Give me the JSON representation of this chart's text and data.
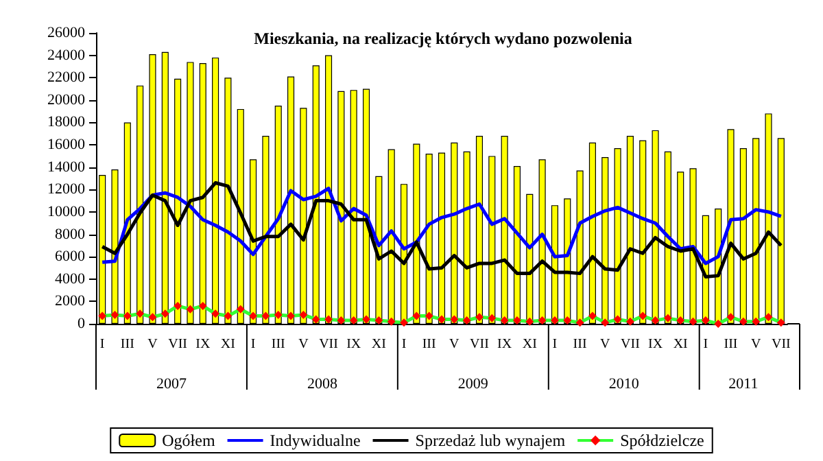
{
  "chart_data": {
    "type": "bar",
    "title": "Mieszkania, na realizację których wydano pozwolenia",
    "categories": [
      "I",
      null,
      "III",
      null,
      "V",
      null,
      "VII",
      null,
      "IX",
      null,
      "XI",
      null,
      "I",
      null,
      "III",
      null,
      "V",
      null,
      "VII",
      null,
      "IX",
      null,
      "XI",
      null,
      "I",
      null,
      "III",
      null,
      "V",
      null,
      "VII",
      null,
      "IX",
      null,
      "XI",
      null,
      "I",
      null,
      "III",
      null,
      "V",
      null,
      "VII",
      null,
      "IX",
      null,
      "XI",
      null,
      "I",
      null,
      "III",
      null,
      "V",
      null,
      "VII"
    ],
    "series": [
      {
        "name": "Ogółem",
        "color": "#ffff00",
        "values": [
          13300,
          13800,
          18000,
          21300,
          24100,
          24300,
          21900,
          23400,
          23300,
          23800,
          22000,
          19200,
          14700,
          16800,
          19500,
          22100,
          19300,
          23100,
          24000,
          20800,
          20900,
          21000,
          13200,
          15600,
          12500,
          16100,
          15200,
          15300,
          16200,
          15400,
          16800,
          15000,
          16800,
          14100,
          11600,
          14700,
          10600,
          11200,
          13700,
          16200,
          14900,
          15700,
          16800,
          16400,
          17300,
          15400,
          13600,
          13900,
          9700,
          10300,
          17400,
          15700,
          16600,
          18800,
          16600
        ]
      },
      {
        "name": "Indywidualne",
        "type": "line",
        "color": "#0000ff",
        "marker": "none",
        "values": [
          5500,
          5600,
          9300,
          10300,
          11500,
          11700,
          11300,
          10500,
          9300,
          8800,
          8200,
          7400,
          6200,
          7800,
          9400,
          11900,
          11100,
          11400,
          12100,
          9200,
          10300,
          9700,
          7000,
          8300,
          6700,
          7300,
          8900,
          9500,
          9800,
          10300,
          10700,
          8900,
          9400,
          8100,
          6800,
          8000,
          6000,
          6100,
          9000,
          9600,
          10100,
          10400,
          9900,
          9400,
          9000,
          7800,
          6700,
          6900,
          5400,
          6000,
          9300,
          9400,
          10200,
          10000,
          9600
        ]
      },
      {
        "name": "Sprzedaż lub wynajem",
        "type": "line",
        "color": "#000000",
        "marker": "none",
        "values": [
          6900,
          6300,
          8000,
          9900,
          11500,
          11000,
          8800,
          11000,
          11300,
          12600,
          12300,
          9900,
          7400,
          7800,
          7800,
          8900,
          7500,
          11000,
          11000,
          10700,
          9300,
          9300,
          5800,
          6500,
          5400,
          7300,
          4900,
          5000,
          6100,
          5000,
          5400,
          5400,
          5700,
          4500,
          4500,
          5600,
          4600,
          4600,
          4500,
          6000,
          4900,
          4800,
          6700,
          6300,
          7700,
          6900,
          6500,
          6700,
          4200,
          4300,
          7200,
          5800,
          6300,
          8200,
          7000
        ]
      },
      {
        "name": "Spółdzielcze",
        "type": "line",
        "color": "#33ff33",
        "marker": "diamond",
        "colors": [
          "#ff0000",
          "#ff0000",
          "#ff0000",
          "#ff0000",
          "#ff0000",
          "#ff0000",
          "#ff0000",
          "#ff0000",
          "#ff0000",
          "#ff0000",
          "#ff0000",
          "#ff0000",
          "#ff0000",
          "#ff0000",
          "#ff0000",
          "#ff0000",
          "#ff0000",
          "#ff0000",
          "#ff0000",
          "#ff0000",
          "#ff0000",
          "#ff0000",
          "#ff0000",
          "#ff0000",
          "#ff0000",
          "#ff0000",
          "#ff0000",
          "#ff0000",
          "#ff0000",
          "#ff0000",
          "#ff0000",
          "#ff0000",
          "#ff0000",
          "#ff0000",
          "#ff0000",
          "#ff0000",
          "#ff0000",
          "#ff0000",
          "#ff0000",
          "#ff0000",
          "#ff0000",
          "#ff0000",
          "#ff0000",
          "#ff0000",
          "#ff0000",
          "#ff0000",
          "#ff0000",
          "#ff0000",
          "#ff0000",
          "#ff0000",
          "#ff0000",
          "#ff0000",
          "#ff0000",
          "#ff0000",
          "#ff0000"
        ],
        "values": [
          700,
          800,
          700,
          900,
          600,
          900,
          1600,
          1300,
          1600,
          900,
          700,
          1300,
          700,
          700,
          800,
          700,
          800,
          400,
          400,
          300,
          300,
          400,
          300,
          200,
          100,
          700,
          700,
          400,
          400,
          300,
          600,
          500,
          300,
          300,
          200,
          300,
          300,
          300,
          100,
          700,
          100,
          400,
          200,
          700,
          300,
          500,
          300,
          200,
          300,
          0,
          600,
          200,
          200,
          600,
          100
        ]
      }
    ],
    "ylim": [
      0,
      26000
    ],
    "yticks": [
      0,
      2000,
      4000,
      6000,
      8000,
      10000,
      12000,
      14000,
      16000,
      18000,
      20000,
      22000,
      24000,
      26000
    ],
    "grid": false,
    "legend": "bottom",
    "annotations": [
      "2007",
      "2008",
      "2009",
      "2010",
      "2011"
    ]
  }
}
